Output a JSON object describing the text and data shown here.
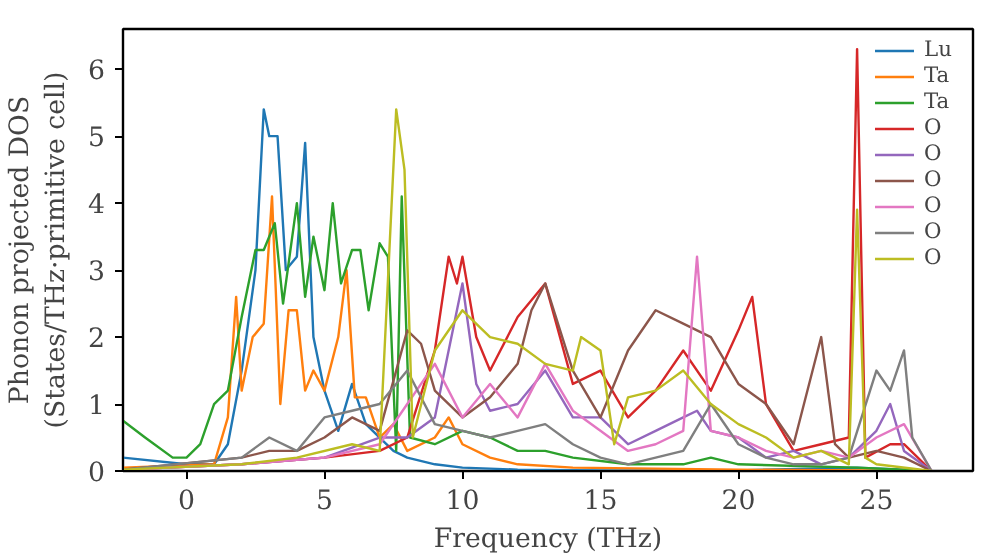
{
  "chart_data": {
    "type": "line",
    "xlabel": "Frequency (THz)",
    "ylabel": "Phonon projected DOS\n(States/THz·primitive cell)",
    "xlim": [
      -2.3,
      28.5
    ],
    "ylim": [
      0,
      6.6
    ],
    "xticks": [
      0,
      5,
      10,
      15,
      20,
      25
    ],
    "yticks": [
      0,
      1,
      2,
      3,
      4,
      5,
      6
    ],
    "grid": false,
    "legend": "top right",
    "series": [
      {
        "name": "Lu",
        "color": "#1f77b4",
        "x": [
          -2.3,
          0,
          1,
          1.5,
          2,
          2.5,
          2.8,
          3,
          3.3,
          3.6,
          4,
          4.3,
          4.6,
          5,
          5.5,
          6,
          6.5,
          7,
          7.5,
          8,
          9,
          10,
          12,
          15,
          20,
          24.3,
          27
        ],
        "values": [
          0.2,
          0.1,
          0.1,
          0.4,
          1.5,
          3.0,
          5.4,
          5.0,
          5.0,
          3.0,
          3.2,
          4.9,
          2.0,
          1.2,
          0.6,
          1.3,
          0.7,
          0.5,
          0.3,
          0.2,
          0.1,
          0.05,
          0.02,
          0.01,
          0.01,
          0.05,
          0
        ]
      },
      {
        "name": "Ta",
        "color": "#ff7f0e",
        "x": [
          -2.3,
          1,
          1.5,
          1.8,
          2,
          2.4,
          2.8,
          3.1,
          3.4,
          3.7,
          4,
          4.3,
          4.6,
          5,
          5.5,
          5.8,
          6.1,
          6.5,
          7,
          7.5,
          8,
          9,
          9.5,
          10,
          11,
          12,
          14,
          20,
          27
        ],
        "values": [
          0.05,
          0.1,
          0.8,
          2.6,
          1.2,
          2.0,
          2.2,
          4.1,
          1.0,
          2.4,
          2.4,
          1.2,
          1.5,
          1.2,
          2.0,
          3.0,
          1.1,
          1.1,
          0.5,
          0.7,
          0.3,
          0.5,
          0.8,
          0.4,
          0.2,
          0.1,
          0.05,
          0.02,
          0
        ]
      },
      {
        "name": "Ta",
        "color": "#2ca02c",
        "x": [
          -2.3,
          -1.5,
          -0.5,
          0,
          0.5,
          1,
          1.5,
          2,
          2.5,
          2.8,
          3.2,
          3.5,
          4,
          4.3,
          4.6,
          5,
          5.3,
          5.6,
          6,
          6.3,
          6.6,
          7,
          7.3,
          7.6,
          7.8,
          8.1,
          9,
          10,
          11,
          12,
          13,
          14,
          16,
          18,
          19,
          20,
          24.3,
          27
        ],
        "values": [
          0.75,
          0.5,
          0.2,
          0.2,
          0.4,
          1.0,
          1.2,
          2.3,
          3.3,
          3.3,
          3.7,
          2.5,
          4.0,
          2.6,
          3.5,
          2.7,
          4.0,
          2.8,
          3.3,
          3.3,
          2.4,
          3.4,
          3.2,
          0.3,
          4.1,
          0.5,
          0.4,
          0.6,
          0.5,
          0.3,
          0.3,
          0.2,
          0.1,
          0.1,
          0.2,
          0.1,
          0.05,
          0
        ]
      },
      {
        "name": "O",
        "color": "#d62728",
        "x": [
          -2.3,
          2,
          5,
          7,
          8,
          9,
          9.5,
          9.8,
          10,
          10.5,
          11,
          12,
          13,
          14,
          15,
          16,
          17,
          18,
          19,
          20,
          20.5,
          21,
          22,
          23,
          24,
          24.3,
          24.6,
          25.5,
          26,
          27
        ],
        "values": [
          0.02,
          0.1,
          0.2,
          0.3,
          0.5,
          1.8,
          3.2,
          2.8,
          3.2,
          2.0,
          1.5,
          2.3,
          2.8,
          1.3,
          1.5,
          0.8,
          1.2,
          1.8,
          1.2,
          2.1,
          2.6,
          1.0,
          0.3,
          0.4,
          0.5,
          6.3,
          0.2,
          0.4,
          0.4,
          0
        ]
      },
      {
        "name": "O",
        "color": "#9467bd",
        "x": [
          -2.3,
          2,
          5,
          7,
          8,
          9,
          10,
          10.5,
          11,
          12,
          13,
          14,
          15,
          16,
          17,
          18,
          18.5,
          19,
          20,
          21,
          22,
          23,
          24,
          25,
          25.5,
          26,
          27
        ],
        "values": [
          0.02,
          0.1,
          0.2,
          0.5,
          0.5,
          0.8,
          2.8,
          1.3,
          0.9,
          1.0,
          1.5,
          0.8,
          0.8,
          0.4,
          0.6,
          0.8,
          0.9,
          0.6,
          0.5,
          0.2,
          0.3,
          0.1,
          0.2,
          0.6,
          1.0,
          0.3,
          0
        ]
      },
      {
        "name": "O",
        "color": "#8c564b",
        "x": [
          -2.3,
          2,
          3,
          4,
          5,
          6,
          7,
          8,
          8.5,
          9,
          10,
          11,
          12,
          12.5,
          13,
          14,
          15,
          16,
          17,
          18,
          19,
          20,
          21,
          22,
          23,
          23.5,
          24,
          25,
          26,
          27
        ],
        "values": [
          0.02,
          0.2,
          0.3,
          0.3,
          0.5,
          0.8,
          0.6,
          2.1,
          1.9,
          1.2,
          0.8,
          1.1,
          1.6,
          2.4,
          2.8,
          1.5,
          0.8,
          1.8,
          2.4,
          2.2,
          2.0,
          1.3,
          1.0,
          0.4,
          2.0,
          0.4,
          0.2,
          0.3,
          0.2,
          0
        ]
      },
      {
        "name": "O",
        "color": "#e377c2",
        "x": [
          -2.3,
          2,
          5,
          7,
          8,
          9,
          10,
          11,
          12,
          13,
          14,
          15,
          16,
          17,
          18,
          18.5,
          19,
          20,
          21,
          22,
          23,
          24,
          25,
          26,
          27
        ],
        "values": [
          0.02,
          0.1,
          0.2,
          0.4,
          1.0,
          1.6,
          0.8,
          1.3,
          0.8,
          1.6,
          0.9,
          0.6,
          0.3,
          0.4,
          0.6,
          3.2,
          0.6,
          0.5,
          0.3,
          0.2,
          0.3,
          0.2,
          0.5,
          0.7,
          0
        ]
      },
      {
        "name": "O",
        "color": "#7f7f7f",
        "x": [
          -2.3,
          2,
          3,
          4,
          5,
          6,
          7,
          8,
          9,
          10,
          11,
          12,
          13,
          14,
          15,
          16,
          17,
          18,
          19,
          20,
          21,
          22,
          23,
          24,
          25,
          25.5,
          26,
          26.3,
          27
        ],
        "values": [
          0.02,
          0.2,
          0.5,
          0.3,
          0.8,
          0.9,
          1.0,
          1.5,
          0.7,
          0.6,
          0.5,
          0.6,
          0.7,
          0.4,
          0.2,
          0.1,
          0.2,
          0.3,
          1.0,
          0.4,
          0.2,
          0.1,
          0.1,
          0.2,
          1.5,
          1.2,
          1.8,
          0.5,
          0
        ]
      },
      {
        "name": "O",
        "color": "#bcbd22",
        "x": [
          -2.3,
          2,
          4,
          6,
          7,
          7.6,
          7.9,
          8.2,
          9,
          10,
          11,
          12,
          13,
          14,
          14.3,
          15,
          15.5,
          16,
          17,
          18,
          19,
          20,
          21,
          22,
          23,
          24,
          24.3,
          24.6,
          25,
          27
        ],
        "values": [
          0.02,
          0.1,
          0.2,
          0.4,
          0.3,
          5.4,
          4.5,
          0.5,
          1.8,
          2.4,
          2.0,
          1.9,
          1.6,
          1.5,
          2.0,
          1.8,
          0.4,
          1.1,
          1.2,
          1.5,
          1.0,
          0.7,
          0.5,
          0.2,
          0.3,
          0.1,
          3.9,
          0.2,
          0.1,
          0
        ]
      }
    ]
  }
}
